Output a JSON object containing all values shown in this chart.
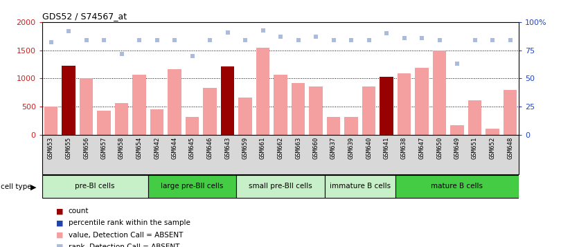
{
  "title": "GDS52 / S74567_at",
  "samples": [
    "GSM653",
    "GSM655",
    "GSM656",
    "GSM657",
    "GSM658",
    "GSM654",
    "GSM642",
    "GSM644",
    "GSM645",
    "GSM646",
    "GSM643",
    "GSM659",
    "GSM661",
    "GSM662",
    "GSM663",
    "GSM660",
    "GSM637",
    "GSM639",
    "GSM640",
    "GSM641",
    "GSM638",
    "GSM647",
    "GSM650",
    "GSM649",
    "GSM651",
    "GSM652",
    "GSM648"
  ],
  "bar_values": [
    500,
    1220,
    1010,
    420,
    560,
    1065,
    450,
    1165,
    310,
    835,
    1210,
    660,
    1540,
    1060,
    920,
    855,
    320,
    310,
    855,
    1025,
    1090,
    1195,
    1500,
    170,
    610,
    105,
    800
  ],
  "bar_is_dark": [
    false,
    true,
    false,
    false,
    false,
    false,
    false,
    false,
    false,
    false,
    true,
    false,
    false,
    false,
    false,
    false,
    false,
    false,
    false,
    true,
    false,
    false,
    false,
    false,
    false,
    false,
    false
  ],
  "rank_values": [
    82,
    92,
    84,
    84,
    72,
    84,
    84,
    84,
    70,
    84,
    91,
    84,
    93,
    87,
    84,
    87,
    84,
    84,
    84,
    90,
    86,
    86,
    84,
    63,
    84,
    84,
    84
  ],
  "cell_groups": [
    {
      "label": "pre-BI cells",
      "start": 0,
      "end": 6,
      "color": "#c8f0c8"
    },
    {
      "label": "large pre-BII cells",
      "start": 6,
      "end": 11,
      "color": "#44cc44"
    },
    {
      "label": "small pre-BII cells",
      "start": 11,
      "end": 16,
      "color": "#c8f0c8"
    },
    {
      "label": "immature B cells",
      "start": 16,
      "end": 20,
      "color": "#c8f0c8"
    },
    {
      "label": "mature B cells",
      "start": 20,
      "end": 27,
      "color": "#44cc44"
    }
  ],
  "ylim_left": [
    0,
    2000
  ],
  "ylim_right": [
    0,
    100
  ],
  "yticks_left": [
    0,
    500,
    1000,
    1500,
    2000
  ],
  "yticks_right": [
    0,
    25,
    50,
    75,
    100
  ],
  "ytick_labels_left": [
    "0",
    "500",
    "1000",
    "1500",
    "2000"
  ],
  "ytick_labels_right": [
    "0",
    "25",
    "50",
    "75",
    "100%"
  ],
  "bar_color_light": "#f4a0a0",
  "bar_color_dark": "#990000",
  "dot_color_light": "#aabbdd",
  "legend_items": [
    {
      "color": "#990000",
      "label": "count"
    },
    {
      "color": "#2244aa",
      "label": "percentile rank within the sample"
    },
    {
      "color": "#f4a0a0",
      "label": "value, Detection Call = ABSENT"
    },
    {
      "color": "#aabbdd",
      "label": "rank, Detection Call = ABSENT"
    }
  ]
}
